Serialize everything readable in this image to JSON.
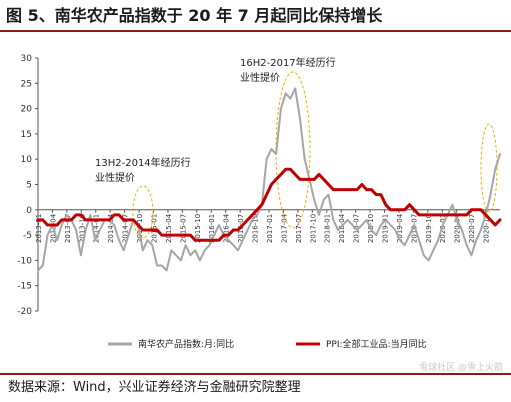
{
  "figure": {
    "title": "图 5、南华农产品指数于 20 年 7 月起同比保持增长",
    "source": "数据来源：Wind，兴业证券经济与金融研究院整理",
    "watermark": "雪球社区 @雪上火箭"
  },
  "chart_data": {
    "type": "line",
    "ylim": [
      -20,
      30
    ],
    "yticks": [
      -20,
      -15,
      -10,
      -5,
      0,
      5,
      10,
      15,
      20,
      25,
      30
    ],
    "grid": false,
    "legend_position": "bottom",
    "x_labels": [
      "2013-01",
      "2013-04",
      "2013-07",
      "2013-10",
      "2014-01",
      "2014-04",
      "2014-07",
      "2014-10",
      "2015-01",
      "2015-04",
      "2015-07",
      "2015-10",
      "2016-01",
      "2016-04",
      "2016-07",
      "2016-10",
      "2017-01",
      "2017-04",
      "2017-07",
      "2017-10",
      "2018-01",
      "2018-04",
      "2018-07",
      "2018-10",
      "2019-01",
      "2019-04",
      "2019-07",
      "2019-10",
      "2020-01",
      "2020-04",
      "2020-07",
      "2020-10"
    ],
    "annotations": [
      {
        "line1": "13H2-2014年经历行",
        "line2": "业性提价"
      },
      {
        "line1": "16H2-2017年经历行",
        "line2": "业性提价"
      }
    ],
    "series": [
      {
        "name": "南华农产品指数:月:同比",
        "color": "#a6a6a6",
        "values": [
          -12,
          -11,
          -5,
          -3,
          -6,
          -3,
          -1,
          -2,
          -4,
          -9,
          -4,
          -1,
          -6,
          -4,
          -2,
          -2,
          -3,
          -6,
          -8,
          -5,
          -2,
          -3,
          -8,
          -6,
          -7,
          -11,
          -11,
          -12,
          -8,
          -9,
          -10,
          -7,
          -9,
          -8,
          -10,
          -8,
          -7,
          -5,
          -3,
          -5,
          -6,
          -7,
          -8,
          -6,
          -4,
          -2,
          -1,
          1,
          10,
          12,
          11,
          20,
          23,
          22,
          24,
          18,
          10,
          6,
          2,
          -1,
          2,
          3,
          -2,
          -4,
          -3,
          -2,
          -3,
          -4,
          -3,
          -2,
          -4,
          -5,
          -3,
          -2,
          -3,
          -4,
          -6,
          -7,
          -5,
          -3,
          -6,
          -9,
          -10,
          -8,
          -6,
          -3,
          -1,
          1,
          -2,
          -4,
          -7,
          -9,
          -6,
          -4,
          -1,
          3,
          8,
          11
        ]
      },
      {
        "name": "PPI:全部工业品:当月同比",
        "color": "#c00000",
        "values": [
          -2,
          -2,
          -3,
          -3,
          -3,
          -2,
          -2,
          -2,
          -1,
          -1,
          -2,
          -2,
          -2,
          -2,
          -2,
          -2,
          -1,
          -1,
          -2,
          -2,
          -2,
          -3,
          -4,
          -4,
          -4,
          -4,
          -5,
          -5,
          -5,
          -5,
          -5,
          -5,
          -5,
          -6,
          -6,
          -6,
          -6,
          -6,
          -6,
          -5,
          -5,
          -4,
          -4,
          -3,
          -2,
          -1,
          0,
          1,
          3,
          5,
          6,
          7,
          8,
          8,
          7,
          6,
          6,
          6,
          6,
          7,
          6,
          5,
          4,
          4,
          4,
          4,
          4,
          4,
          5,
          4,
          4,
          3,
          3,
          1,
          0,
          0,
          0,
          0,
          1,
          0,
          -1,
          -1,
          -1,
          -1,
          -1,
          -1,
          -1,
          -1,
          -1,
          -1,
          -1,
          0,
          0,
          0,
          -1,
          -2,
          -3,
          -2
        ]
      }
    ]
  }
}
